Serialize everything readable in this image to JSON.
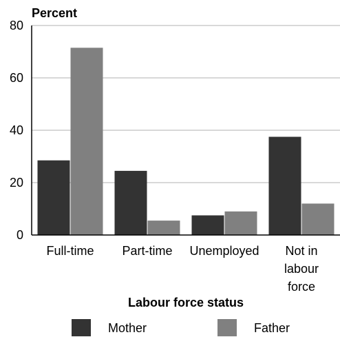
{
  "chart_data": {
    "type": "bar",
    "title": "",
    "ylabel": "Percent",
    "xlabel": "Labour force status",
    "categories": [
      [
        "Full-time"
      ],
      [
        "Part-time"
      ],
      [
        "Unemployed"
      ],
      [
        "Not in",
        "labour",
        "force"
      ]
    ],
    "series": [
      {
        "name": "Mother",
        "values": [
          28.5,
          24.5,
          7.5,
          37.5
        ],
        "color": "#333333"
      },
      {
        "name": "Father",
        "values": [
          71.5,
          5.5,
          9.0,
          12.0
        ],
        "color": "#808080"
      }
    ],
    "ylim": [
      0,
      80
    ],
    "yticks": [
      0,
      20,
      40,
      60,
      80
    ],
    "grid": true,
    "legend_position": "bottom"
  }
}
